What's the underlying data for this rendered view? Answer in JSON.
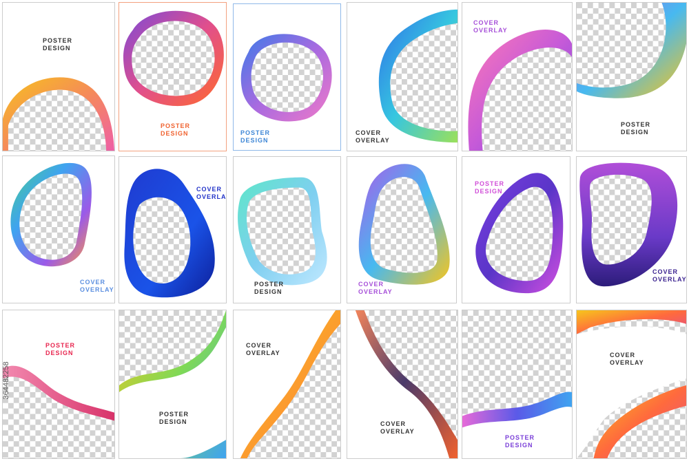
{
  "cards": [
    {
      "l1": "POSTER",
      "l2": "DESIGN",
      "color": "#333333"
    },
    {
      "l1": "POSTER",
      "l2": "DESIGN",
      "color": "#f0622f"
    },
    {
      "l1": "POSTER",
      "l2": "DESIGN",
      "color": "#3d86d6"
    },
    {
      "l1": "COVER",
      "l2": "OVERLAY",
      "color": "#333333"
    },
    {
      "l1": "COVER",
      "l2": "OVERLAY",
      "color": "#a64fd8"
    },
    {
      "l1": "POSTER",
      "l2": "DESIGN",
      "color": "#333333"
    },
    {
      "l1": "COVER",
      "l2": "OVERLAY",
      "color": "#5b8fe0"
    },
    {
      "l1": "COVER",
      "l2": "OVERLAY",
      "color": "#2233c8"
    },
    {
      "l1": "POSTER",
      "l2": "DESIGN",
      "color": "#333333"
    },
    {
      "l1": "COVER",
      "l2": "OVERLAY",
      "color": "#a64fd8"
    },
    {
      "l1": "POSTER",
      "l2": "DESIGN",
      "color": "#d14fd8"
    },
    {
      "l1": "COVER",
      "l2": "OVERLAY",
      "color": "#3b2290"
    },
    {
      "l1": "POSTER",
      "l2": "DESIGN",
      "color": "#e8264f"
    },
    {
      "l1": "POSTER",
      "l2": "DESIGN",
      "color": "#333333"
    },
    {
      "l1": "COVER",
      "l2": "OVERLAY",
      "color": "#333333"
    },
    {
      "l1": "COVER",
      "l2": "OVERLAY",
      "color": "#333333"
    },
    {
      "l1": "POSTER",
      "l2": "DESIGN",
      "color": "#7a3fd8"
    },
    {
      "l1": "COVER",
      "l2": "OVERLAY",
      "color": "#333333"
    }
  ],
  "watermark": "364482258"
}
